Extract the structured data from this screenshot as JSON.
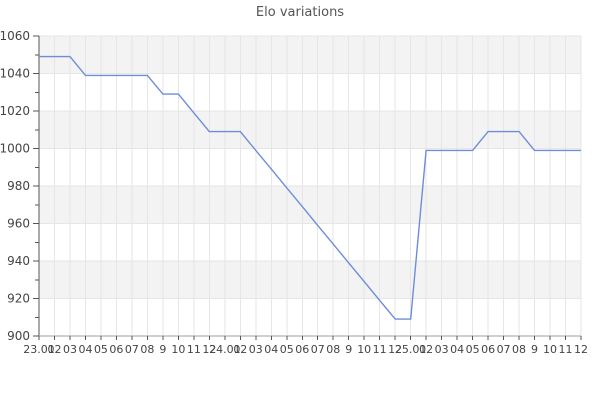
{
  "chart_data": {
    "type": "line",
    "title": "Elo variations",
    "x_labels": [
      "23.01",
      "02",
      "03",
      "04",
      "05",
      "06",
      "07",
      "08",
      "9",
      "10",
      "11",
      "12",
      "24.01",
      "02",
      "03",
      "04",
      "05",
      "06",
      "07",
      "08",
      "9",
      "10",
      "11",
      "12",
      "25.01",
      "02",
      "03",
      "04",
      "05",
      "06",
      "07",
      "08",
      "9",
      "10",
      "11",
      "12"
    ],
    "y_ticks": [
      1060,
      1040,
      1020,
      1000,
      980,
      960,
      940,
      920,
      900
    ],
    "y_minor_step": 10,
    "ylim": [
      900,
      1060
    ],
    "series": [
      {
        "values": [
          1049,
          1049,
          1049,
          1039,
          1039,
          1039,
          1039,
          1039,
          1029,
          1029,
          1019,
          1009,
          1009,
          1009,
          999,
          989,
          979,
          969,
          959,
          949,
          939,
          929,
          919,
          909,
          909,
          999,
          999,
          999,
          999,
          1009,
          1009,
          1009,
          999,
          999,
          999,
          999
        ]
      }
    ],
    "grid": true,
    "legend_position": "none",
    "colors": {
      "line": "#6d8dda",
      "band": "#f3f3f3",
      "grid": "#e6e6e6",
      "axis_y": "#555555",
      "axis_x": "#9e9e9e",
      "tick": "#555555",
      "label_text": "#444444",
      "title_text": "#555555",
      "background": "#ffffff"
    }
  }
}
